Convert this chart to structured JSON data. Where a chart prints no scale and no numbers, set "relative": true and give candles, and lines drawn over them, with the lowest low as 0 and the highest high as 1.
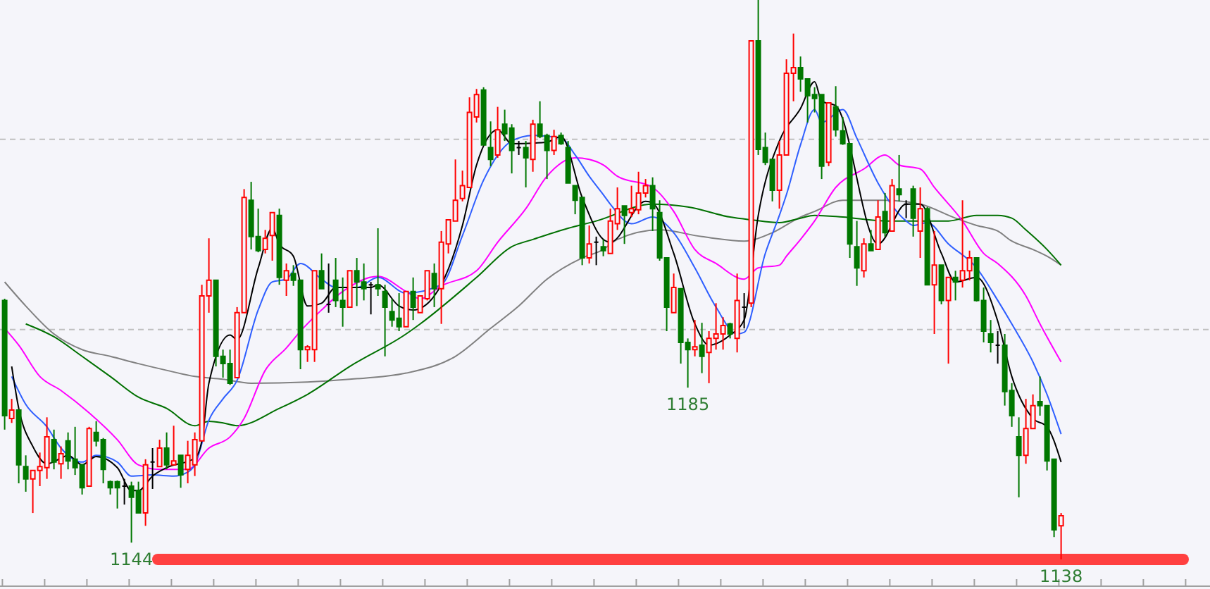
{
  "chart_data": {
    "type": "candlestick",
    "relative": true,
    "categories": [
      null,
      null,
      null,
      null,
      null,
      null,
      null,
      null,
      null,
      null,
      null,
      null,
      null,
      null,
      null,
      null,
      null,
      null,
      null,
      null,
      null,
      null,
      null,
      null,
      null,
      null,
      null,
      null,
      null,
      null,
      null,
      null,
      null,
      null,
      null,
      null,
      null,
      null,
      null,
      null,
      null,
      null,
      null,
      null,
      null,
      null,
      null,
      null,
      null,
      null,
      null,
      null,
      null,
      null,
      null,
      null,
      null,
      null,
      null,
      null,
      null,
      null,
      null,
      null,
      null,
      null,
      null,
      null,
      null,
      null,
      null,
      null,
      null,
      null,
      null,
      null,
      null,
      null,
      null,
      null,
      null,
      null,
      null,
      null,
      null,
      null,
      null,
      null,
      null,
      null,
      null,
      null,
      null,
      null,
      null,
      null,
      null,
      null,
      null,
      null,
      null,
      null,
      null,
      null,
      null,
      null,
      null,
      null,
      null,
      null,
      null,
      null,
      null,
      null,
      null,
      null,
      null,
      null,
      null,
      null,
      null,
      null,
      null,
      null,
      null,
      null,
      null,
      null,
      null,
      null,
      null,
      null,
      null,
      null,
      null,
      null,
      null,
      null,
      null,
      null,
      null,
      null,
      null,
      null,
      null,
      null,
      null,
      null,
      null,
      null,
      null
    ],
    "colors": [
      "#007800",
      "#ff0000",
      "#007800",
      "#007800",
      "#ff0000",
      "#ff0000",
      "#ff0000",
      "#007800",
      "#ff0000",
      "#007800",
      "#007800",
      "#007800",
      "#ff0000",
      "#007800",
      "#007800",
      "#007800",
      "#007800",
      "#000000",
      "#007800",
      "#007800",
      "#ff0000",
      "#000000",
      "#ff0000",
      "#007800",
      "#ff0000",
      "#007800",
      "#ff0000",
      "#ff0000",
      "#ff0000",
      "#ff0000",
      "#007800",
      "#007800",
      "#007800",
      "#ff0000",
      "#ff0000",
      "#007800",
      "#007800",
      "#ff0000",
      "#ff0000",
      "#007800",
      "#ff0000",
      "#007800",
      "#007800",
      "#ff0000",
      "#ff0000",
      "#007800",
      "#000000",
      "#007800",
      "#007800",
      "#ff0000",
      "#007800",
      "#007800",
      "#000000",
      "#007800",
      "#007800",
      "#007800",
      "#007800",
      "#ff0000",
      "#007800",
      "#ff0000",
      "#ff0000",
      "#007800",
      "#ff0000",
      "#ff0000",
      "#ff0000",
      "#ff0000",
      "#ff0000",
      "#ff0000",
      "#007800",
      "#007800",
      "#ff0000",
      "#007800",
      "#007800",
      "#000000",
      "#007800",
      "#ff0000",
      "#007800",
      "#007800",
      "#ff0000",
      "#007800",
      "#007800",
      "#007800",
      "#007800",
      "#ff0000",
      "#000000",
      "#007800",
      "#ff0000",
      "#ff0000",
      "#007800",
      "#ff0000",
      "#ff0000",
      "#ff0000",
      "#007800",
      "#007800",
      "#007800",
      "#ff0000",
      "#007800",
      "#007800",
      "#ff0000",
      "#007800",
      "#ff0000",
      "#ff0000",
      "#ff0000",
      "#007800",
      "#ff0000",
      "#000000",
      "#ff0000",
      "#007800",
      "#007800",
      "#007800",
      "#ff0000",
      "#ff0000",
      "#ff0000",
      "#007800",
      "#007800",
      "#007800",
      "#007800",
      "#ff0000",
      "#007800",
      "#007800",
      "#007800",
      "#007800",
      "#ff0000",
      "#007800",
      "#ff0000",
      "#007800",
      "#ff0000",
      "#007800",
      "#000000",
      "#007800",
      "#ff0000",
      "#007800",
      "#ff0000",
      "#007800",
      "#ff0000",
      "#007800",
      "#ff0000",
      "#ff0000",
      "#007800",
      "#007800",
      "#007800",
      "#000000",
      "#007800",
      "#007800",
      "#007800",
      "#ff0000",
      "#ff0000",
      "#007800",
      "#007800",
      "#007800",
      "#ff0000"
    ],
    "ohlc": [
      [
        0.463,
        0.466,
        0.232,
        0.257
      ],
      [
        0.252,
        0.287,
        0.244,
        0.267
      ],
      [
        0.267,
        0.267,
        0.136,
        0.169
      ],
      [
        0.166,
        0.186,
        0.121,
        0.144
      ],
      [
        0.144,
        0.159,
        0.083,
        0.159
      ],
      [
        0.159,
        0.191,
        0.131,
        0.166
      ],
      [
        0.164,
        0.254,
        0.144,
        0.219
      ],
      [
        0.214,
        0.232,
        0.161,
        0.174
      ],
      [
        0.171,
        0.202,
        0.144,
        0.189
      ],
      [
        0.212,
        0.227,
        0.161,
        0.176
      ],
      [
        0.179,
        0.237,
        0.151,
        0.164
      ],
      [
        0.169,
        0.169,
        0.116,
        0.128
      ],
      [
        0.131,
        0.237,
        0.131,
        0.234
      ],
      [
        0.227,
        0.247,
        0.202,
        0.212
      ],
      [
        0.214,
        0.217,
        0.136,
        0.161
      ],
      [
        0.139,
        0.141,
        0.116,
        0.128
      ],
      [
        0.139,
        0.141,
        0.091,
        0.128
      ],
      [
        0.131,
        0.144,
        0.098,
        0.131
      ],
      [
        0.131,
        0.139,
        0.03,
        0.111
      ],
      [
        0.123,
        0.139,
        0.083,
        0.083
      ],
      [
        0.083,
        0.179,
        0.06,
        0.169
      ],
      [
        0.174,
        0.199,
        0.126,
        0.174
      ],
      [
        0.166,
        0.214,
        0.166,
        0.199
      ],
      [
        0.199,
        0.227,
        0.161,
        0.169
      ],
      [
        0.169,
        0.239,
        0.169,
        0.176
      ],
      [
        0.186,
        0.186,
        0.128,
        0.151
      ],
      [
        0.161,
        0.212,
        0.136,
        0.186
      ],
      [
        0.169,
        0.227,
        0.149,
        0.214
      ],
      [
        0.212,
        0.491,
        0.212,
        0.471
      ],
      [
        0.471,
        0.574,
        0.441,
        0.499
      ],
      [
        0.499,
        0.499,
        0.345,
        0.363
      ],
      [
        0.363,
        0.375,
        0.325,
        0.35
      ],
      [
        0.35,
        0.375,
        0.312,
        0.315
      ],
      [
        0.325,
        0.451,
        0.325,
        0.441
      ],
      [
        0.441,
        0.662,
        0.441,
        0.647
      ],
      [
        0.642,
        0.675,
        0.554,
        0.577
      ],
      [
        0.577,
        0.627,
        0.549,
        0.552
      ],
      [
        0.554,
        0.589,
        0.547,
        0.574
      ],
      [
        0.579,
        0.62,
        0.534,
        0.62
      ],
      [
        0.615,
        0.627,
        0.491,
        0.504
      ],
      [
        0.499,
        0.529,
        0.471,
        0.516
      ],
      [
        0.511,
        0.526,
        0.489,
        0.499
      ],
      [
        0.499,
        0.499,
        0.34,
        0.375
      ],
      [
        0.375,
        0.383,
        0.353,
        0.38
      ],
      [
        0.375,
        0.516,
        0.353,
        0.516
      ],
      [
        0.516,
        0.547,
        0.484,
        0.484
      ],
      [
        0.456,
        0.529,
        0.441,
        0.456
      ],
      [
        0.499,
        0.539,
        0.451,
        0.463
      ],
      [
        0.463,
        0.504,
        0.416,
        0.451
      ],
      [
        0.451,
        0.516,
        0.451,
        0.516
      ],
      [
        0.516,
        0.539,
        0.453,
        0.496
      ],
      [
        0.496,
        0.529,
        0.463,
        0.484
      ],
      [
        0.491,
        0.496,
        0.438,
        0.491
      ],
      [
        0.491,
        0.592,
        0.471,
        0.484
      ],
      [
        0.479,
        0.491,
        0.363,
        0.451
      ],
      [
        0.443,
        0.466,
        0.416,
        0.428
      ],
      [
        0.431,
        0.476,
        0.408,
        0.416
      ],
      [
        0.416,
        0.479,
        0.416,
        0.479
      ],
      [
        0.479,
        0.504,
        0.428,
        0.451
      ],
      [
        0.441,
        0.471,
        0.441,
        0.471
      ],
      [
        0.466,
        0.516,
        0.463,
        0.516
      ],
      [
        0.511,
        0.529,
        0.451,
        0.484
      ],
      [
        0.484,
        0.587,
        0.421,
        0.567
      ],
      [
        0.564,
        0.607,
        0.547,
        0.607
      ],
      [
        0.605,
        0.715,
        0.605,
        0.642
      ],
      [
        0.645,
        0.695,
        0.64,
        0.668
      ],
      [
        0.665,
        0.826,
        0.665,
        0.799
      ],
      [
        0.791,
        0.841,
        0.781,
        0.831
      ],
      [
        0.839,
        0.844,
        0.741,
        0.741
      ],
      [
        0.736,
        0.783,
        0.703,
        0.715
      ],
      [
        0.723,
        0.809,
        0.718,
        0.768
      ],
      [
        0.778,
        0.804,
        0.748,
        0.761
      ],
      [
        0.771,
        0.778,
        0.69,
        0.731
      ],
      [
        0.736,
        0.748,
        0.723,
        0.736
      ],
      [
        0.736,
        0.748,
        0.665,
        0.718
      ],
      [
        0.715,
        0.786,
        0.693,
        0.778
      ],
      [
        0.778,
        0.819,
        0.753,
        0.756
      ],
      [
        0.758,
        0.761,
        0.68,
        0.731
      ],
      [
        0.731,
        0.768,
        0.723,
        0.756
      ],
      [
        0.758,
        0.763,
        0.741,
        0.743
      ],
      [
        0.736,
        0.748,
        0.673,
        0.673
      ],
      [
        0.668,
        0.668,
        0.617,
        0.642
      ],
      [
        0.647,
        0.647,
        0.526,
        0.539
      ],
      [
        0.539,
        0.597,
        0.529,
        0.564
      ],
      [
        0.567,
        0.577,
        0.526,
        0.567
      ],
      [
        0.559,
        0.572,
        0.542,
        0.552
      ],
      [
        0.547,
        0.627,
        0.547,
        0.605
      ],
      [
        0.6,
        0.665,
        0.589,
        0.627
      ],
      [
        0.632,
        0.632,
        0.564,
        0.615
      ],
      [
        0.62,
        0.668,
        0.612,
        0.627
      ],
      [
        0.625,
        0.693,
        0.617,
        0.655
      ],
      [
        0.655,
        0.68,
        0.647,
        0.668
      ],
      [
        0.668,
        0.683,
        0.587,
        0.627
      ],
      [
        0.62,
        0.642,
        0.534,
        0.539
      ],
      [
        0.539,
        0.539,
        0.408,
        0.451
      ],
      [
        0.441,
        0.511,
        0.441,
        0.486
      ],
      [
        0.484,
        0.484,
        0.35,
        0.388
      ],
      [
        0.388,
        0.395,
        0.307,
        0.375
      ],
      [
        0.375,
        0.428,
        0.363,
        0.38
      ],
      [
        0.383,
        0.423,
        0.333,
        0.363
      ],
      [
        0.37,
        0.408,
        0.315,
        0.395
      ],
      [
        0.395,
        0.458,
        0.375,
        0.403
      ],
      [
        0.403,
        0.433,
        0.375,
        0.418
      ],
      [
        0.421,
        0.423,
        0.395,
        0.403
      ],
      [
        0.395,
        0.511,
        0.37,
        0.463
      ],
      [
        0.451,
        0.476,
        0.413,
        0.451
      ],
      [
        0.458,
        0.927,
        0.451,
        0.927
      ],
      [
        0.927,
        1,
        0.723,
        0.733
      ],
      [
        0.736,
        0.763,
        0.705,
        0.71
      ],
      [
        0.715,
        0.715,
        0.64,
        0.66
      ],
      [
        0.66,
        0.748,
        0.627,
        0.723
      ],
      [
        0.723,
        0.894,
        0.723,
        0.869
      ],
      [
        0.869,
        0.94,
        0.819,
        0.879
      ],
      [
        0.879,
        0.899,
        0.836,
        0.859
      ],
      [
        0.859,
        0.859,
        0.781,
        0.829
      ],
      [
        0.831,
        0.844,
        0.799,
        0.824
      ],
      [
        0.831,
        0.831,
        0.68,
        0.703
      ],
      [
        0.71,
        0.816,
        0.703,
        0.816
      ],
      [
        0.809,
        0.846,
        0.756,
        0.768
      ],
      [
        0.766,
        0.791,
        0.741,
        0.743
      ],
      [
        0.743,
        0.743,
        0.539,
        0.564
      ],
      [
        0.559,
        0.605,
        0.489,
        0.521
      ],
      [
        0.516,
        0.574,
        0.504,
        0.564
      ],
      [
        0.564,
        0.589,
        0.552,
        0.552
      ],
      [
        0.554,
        0.642,
        0.554,
        0.612
      ],
      [
        0.622,
        0.655,
        0.577,
        0.584
      ],
      [
        0.587,
        0.68,
        0.587,
        0.668
      ],
      [
        0.662,
        0.723,
        0.64,
        0.652
      ],
      [
        0.635,
        0.642,
        0.61,
        0.635
      ],
      [
        0.662,
        0.668,
        0.577,
        0.61
      ],
      [
        0.587,
        0.665,
        0.539,
        0.627
      ],
      [
        0.627,
        0.63,
        0.491,
        0.491
      ],
      [
        0.491,
        0.587,
        0.403,
        0.526
      ],
      [
        0.526,
        0.526,
        0.456,
        0.463
      ],
      [
        0.463,
        0.504,
        0.35,
        0.504
      ],
      [
        0.504,
        0.516,
        0.463,
        0.496
      ],
      [
        0.499,
        0.642,
        0.486,
        0.516
      ],
      [
        0.516,
        0.552,
        0.499,
        0.539
      ],
      [
        0.539,
        0.539,
        0.461,
        0.463
      ],
      [
        0.463,
        0.486,
        0.388,
        0.408
      ],
      [
        0.403,
        0.428,
        0.37,
        0.388
      ],
      [
        0.383,
        0.408,
        0.35,
        0.383
      ],
      [
        0.383,
        0.403,
        0.275,
        0.3
      ],
      [
        0.302,
        0.315,
        0.237,
        0.257
      ],
      [
        0.219,
        0.254,
        0.111,
        0.186
      ],
      [
        0.186,
        0.287,
        0.171,
        0.234
      ],
      [
        0.234,
        0.295,
        0.234,
        0.275
      ],
      [
        0.282,
        0.327,
        0.257,
        0.275
      ],
      [
        0.275,
        0.275,
        0.159,
        0.176
      ],
      [
        0.179,
        0.179,
        0.04,
        0.053
      ],
      [
        0.06,
        0.083,
        0,
        0.078
      ]
    ],
    "series": [
      {
        "type": "line",
        "color": "#808080",
        "values": [
          0.496,
          null,
          null,
          0.453,
          null,
          null,
          null,
          0.403,
          null,
          null,
          null,
          0.375,
          null,
          null,
          null,
          0.363,
          null,
          null,
          null,
          0.35,
          null,
          null,
          null,
          0.338,
          null,
          null,
          null,
          0.327,
          null,
          null,
          null,
          0.322,
          null,
          null,
          null,
          0.315,
          null,
          null,
          null,
          null,
          null,
          null,
          null,
          0.317,
          null,
          null,
          null,
          null,
          null,
          0.322,
          null,
          null,
          null,
          null,
          null,
          null,
          null,
          0.333,
          null,
          null,
          null,
          null,
          null,
          null,
          0.363,
          null,
          null,
          null,
          null,
          0.413,
          null,
          null,
          null,
          0.453,
          null,
          null,
          null,
          0.501,
          null,
          null,
          null,
          null,
          0.539,
          null,
          null,
          0.554,
          null,
          0.572,
          null,
          null,
          null,
          null,
          null,
          0.589,
          null,
          null,
          null,
          null,
          null,
          0.577,
          null,
          null,
          null,
          null,
          null,
          0.569,
          null,
          null,
          null,
          0.584,
          null,
          null,
          null,
          0.612,
          null,
          0.622,
          null,
          null,
          null,
          0.642,
          null,
          null,
          null,
          null,
          null,
          0.642,
          null,
          null,
          null,
          null,
          0.635,
          null,
          null,
          null,
          null,
          0.61,
          null,
          null,
          0.597,
          null,
          null,
          0.587,
          null,
          0.569,
          null,
          null,
          0.554,
          null,
          0.542,
          null,
          0.526
        ]
      },
      {
        "type": "line",
        "color": "#007000",
        "values": [
          null,
          null,
          null,
          0.421,
          null,
          null,
          null,
          0.398,
          null,
          null,
          null,
          0.363,
          null,
          null,
          null,
          0.327,
          null,
          null,
          null,
          0.29,
          null,
          null,
          null,
          0.27,
          null,
          null,
          null,
          0.239,
          null,
          0.247,
          null,
          0.244,
          null,
          0.239,
          null,
          null,
          null,
          null,
          null,
          0.27,
          null,
          null,
          null,
          0.295,
          null,
          null,
          null,
          null,
          null,
          0.345,
          null,
          null,
          null,
          null,
          null,
          null,
          null,
          0.403,
          null,
          0.421,
          null,
          null,
          null,
          null,
          null,
          null,
          null,
          0.504,
          null,
          null,
          null,
          null,
          0.559,
          null,
          null,
          0.572,
          null,
          null,
          null,
          null,
          0.592,
          null,
          null,
          null,
          0.605,
          null,
          null,
          null,
          null,
          null,
          null,
          null,
          0.635,
          null,
          null,
          null,
          null,
          0.63,
          null,
          null,
          null,
          null,
          null,
          0.612,
          null,
          null,
          0.607,
          null,
          null,
          null,
          0.602,
          null,
          null,
          0.61,
          null,
          0.615,
          null,
          null,
          null,
          0.612,
          null,
          null,
          null,
          null,
          null,
          0.605,
          null,
          null,
          null,
          null,
          null,
          null,
          null,
          null,
          0.605,
          null,
          null,
          null,
          0.615,
          null,
          null,
          0.615,
          null,
          0.61,
          null,
          0.589,
          null,
          null,
          0.554,
          null,
          0.526
        ]
      },
      {
        "type": "line",
        "color": "#ff00ff",
        "values": [
          0.413,
          null,
          0.383,
          null,
          null,
          0.327,
          null,
          null,
          0.302,
          null,
          null,
          null,
          0.262,
          null,
          null,
          null,
          0.214,
          null,
          null,
          0.169,
          null,
          null,
          0.161,
          null,
          null,
          null,
          0.161,
          null,
          null,
          0.199,
          null,
          null,
          0.219,
          null,
          0.252,
          null,
          null,
          0.338,
          null,
          null,
          0.378,
          null,
          0.408,
          null,
          null,
          0.446,
          null,
          null,
          0.479,
          null,
          null,
          null,
          null,
          0.506,
          null,
          null,
          null,
          0.479,
          null,
          0.466,
          null,
          null,
          0.489,
          null,
          null,
          null,
          null,
          0.516,
          null,
          null,
          0.567,
          null,
          null,
          null,
          0.627,
          null,
          null,
          0.685,
          null,
          null,
          null,
          0.718,
          null,
          0.715,
          null,
          0.705,
          null,
          0.685,
          null,
          null,
          null,
          null,
          0.665,
          null,
          null,
          0.622,
          null,
          null,
          0.554,
          null,
          null,
          0.529,
          null,
          null,
          null,
          0.501,
          null,
          0.521,
          null,
          null,
          0.526,
          0.542,
          null,
          0.572,
          null,
          0.605,
          null,
          null,
          0.665,
          null,
          null,
          null,
          0.698,
          null,
          null,
          0.723,
          null,
          0.705,
          null,
          null,
          0.698,
          null,
          0.665,
          null,
          null,
          null,
          0.605,
          null,
          null,
          0.547,
          null,
          0.529,
          null,
          null,
          null,
          0.471,
          null,
          0.421,
          null,
          null,
          0.353
        ]
      },
      {
        "type": "line",
        "color": "#2f5fff",
        "values": [
          null,
          0.327,
          null,
          0.277,
          null,
          null,
          0.237,
          null,
          0.199,
          null,
          null,
          0.174,
          null,
          0.186,
          null,
          null,
          0.174,
          null,
          0.149,
          null,
          null,
          0.151,
          null,
          null,
          0.149,
          null,
          0.156,
          0.169,
          null,
          0.249,
          null,
          0.287,
          null,
          0.32,
          null,
          null,
          0.446,
          null,
          0.496,
          null,
          0.501,
          null,
          0.529,
          null,
          null,
          0.501,
          null,
          0.486,
          null,
          null,
          0.486,
          null,
          null,
          0.504,
          null,
          null,
          null,
          0.476,
          null,
          null,
          null,
          null,
          0.491,
          null,
          null,
          0.579,
          null,
          null,
          0.678,
          null,
          null,
          null,
          0.748,
          null,
          null,
          0.758,
          null,
          null,
          null,
          0.753,
          null,
          0.723,
          null,
          0.685,
          null,
          0.652,
          0.635,
          null,
          null,
          0.6,
          null,
          null,
          0.612,
          null,
          null,
          0.584,
          null,
          null,
          0.521,
          null,
          null,
          0.451,
          null,
          null,
          0.403,
          0.406,
          null,
          null,
          0.547,
          null,
          0.615,
          0.652,
          null,
          0.741,
          null,
          0.804,
          0.781,
          null,
          null,
          0.804,
          null,
          0.753,
          null,
          null,
          0.673,
          null,
          null,
          null,
          0.605,
          0.597,
          null,
          0.602,
          null,
          null,
          0.564,
          null,
          null,
          null,
          0.521,
          null,
          null,
          0.463,
          null,
          0.421,
          null,
          null,
          0.353,
          null,
          0.295,
          null,
          0.224
        ]
      },
      {
        "type": "line",
        "color": "#000000",
        "values": [
          null,
          0.345,
          0.27,
          null,
          0.202,
          null,
          0.171,
          null,
          0.181,
          0.186,
          null,
          0.169,
          null,
          0.184,
          null,
          null,
          0.164,
          null,
          0.123,
          0.123,
          null,
          0.149,
          null,
          0.164,
          null,
          null,
          null,
          0.181,
          0.212,
          0.315,
          null,
          null,
          0.401,
          0.393,
          null,
          null,
          0.521,
          null,
          0.592,
          0.564,
          null,
          0.542,
          null,
          0.453,
          null,
          0.458,
          null,
          0.486,
          null,
          null,
          null,
          null,
          0.486,
          0.491,
          null,
          null,
          0.453,
          null,
          0.446,
          null,
          null,
          0.471,
          null,
          null,
          null,
          0.597,
          null,
          0.705,
          null,
          null,
          0.768,
          null,
          0.743,
          null,
          null,
          null,
          null,
          0.746,
          null,
          0.756,
          null,
          null,
          0.647,
          null,
          null,
          0.572,
          0.567,
          null,
          null,
          null,
          null,
          0.64,
          0.637,
          null,
          null,
          0.547,
          null,
          null,
          0.421,
          null,
          0.383,
          null,
          null,
          0.401,
          null,
          0.428,
          null,
          0.615,
          null,
          null,
          0.748,
          null,
          null,
          0.806,
          null,
          0.854,
          0.819,
          null,
          0.811,
          null,
          null,
          null,
          null,
          null,
          0.564,
          null,
          null,
          null,
          0.635,
          null,
          0.635,
          null,
          null,
          0.547,
          null,
          0.496,
          null,
          null,
          0.504,
          null,
          null,
          0.426,
          null,
          0.327,
          null,
          null,
          0.252,
          null,
          0.237,
          null,
          0.174
        ]
      }
    ],
    "ref_lines": [
      {
        "axis": "y",
        "value": 0.751,
        "color": "#c0c0c0",
        "line_style": "dashed"
      },
      {
        "axis": "y",
        "value": 0.411,
        "color": "#c0c0c0",
        "line_style": "dashed"
      },
      {
        "axis": "y",
        "value": 0,
        "color": "#ff4040",
        "line_style": "solid"
      }
    ],
    "annotations": [
      {
        "text": "1144",
        "y": 0.03
      },
      {
        "text": "1185",
        "y": 0.307
      },
      {
        "text": "1138",
        "y": 0
      }
    ]
  }
}
